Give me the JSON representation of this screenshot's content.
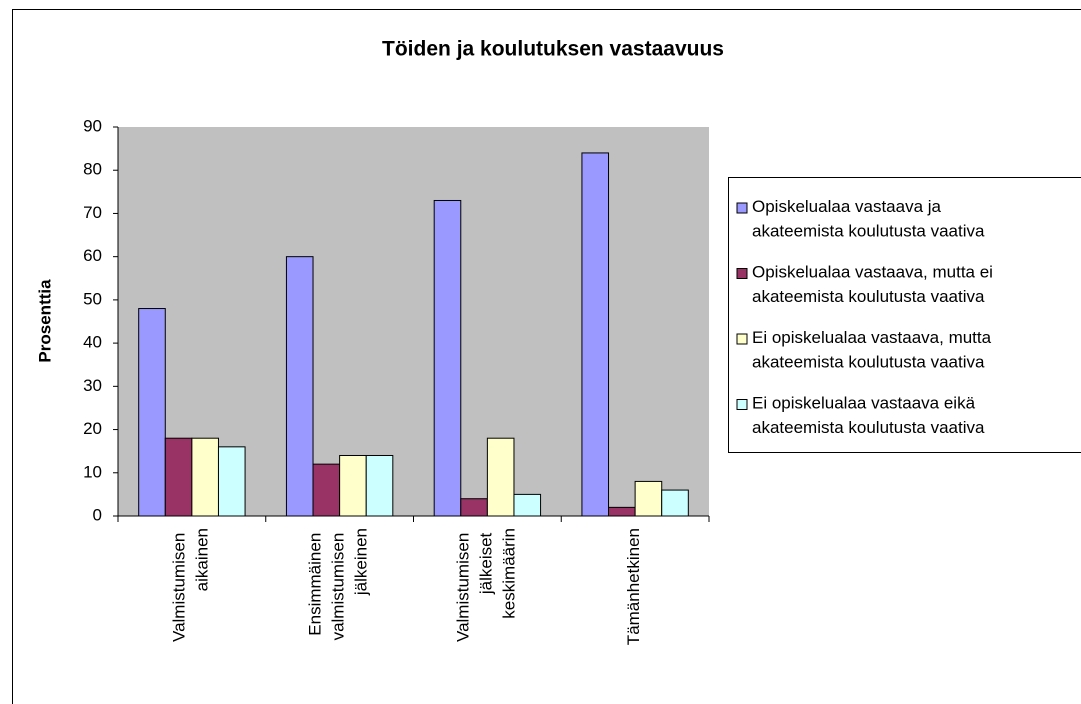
{
  "chart_data": {
    "type": "bar",
    "title": "Töiden ja koulutuksen vastaavuus",
    "y_label": "Prosenttia",
    "categories": [
      "Valmistumisen aikainen",
      "Ensimmäinen valmistumisen jälkeinen",
      "Valmistumisen jälkeiset keskimäärin",
      "Tämänhetkinen"
    ],
    "series": [
      {
        "name": "Opiskelualaa vastaava ja akateemista koulutusta vaativa",
        "color": "#9999ff",
        "values": [
          48,
          60,
          73,
          84
        ]
      },
      {
        "name": "Opiskelualaa vastaava, mutta ei akateemista koulutusta vaativa",
        "color": "#993366",
        "values": [
          18,
          12,
          4,
          2
        ]
      },
      {
        "name": "Ei opiskelualaa vastaava, mutta akateemista koulutusta vaativa",
        "color": "#ffffcc",
        "values": [
          18,
          14,
          18,
          8
        ]
      },
      {
        "name": "Ei opiskelualaa vastaava eikä akateemista koulutusta vaativa",
        "color": "#ccffff",
        "values": [
          16,
          14,
          5,
          6
        ]
      }
    ],
    "ylim": [
      0,
      90
    ],
    "yticks": [
      0,
      10,
      20,
      30,
      40,
      50,
      60,
      70,
      80,
      90
    ],
    "legend": "right"
  }
}
